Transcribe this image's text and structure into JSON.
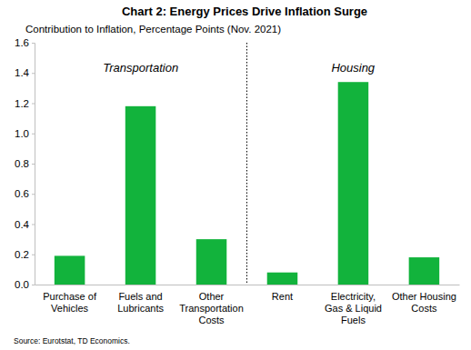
{
  "chart_data": {
    "type": "bar",
    "title": "Chart 2: Energy Prices Drive Inflation Surge",
    "subtitle": "Contribution to Inflation, Percentage Points (Nov. 2021)",
    "annotations": [
      "Transportation",
      "Housing"
    ],
    "source": "Source: Eurotstat, TD Economics.",
    "categories": [
      "Purchase of\nVehicles",
      "Fuels and\nLubricants",
      "Other\nTransportation\nCosts",
      "Rent",
      "Electricity,\nGas & Liquid\nFuels",
      "Other Housing\nCosts"
    ],
    "values": [
      0.19,
      1.18,
      0.3,
      0.08,
      1.34,
      0.18
    ],
    "color": "#12b33c",
    "ylim": [
      0,
      1.6
    ],
    "yticks": [
      {
        "value": 0,
        "label": "0.0"
      },
      {
        "value": 0.2,
        "label": "0.2"
      },
      {
        "value": 0.4,
        "label": "0.4"
      },
      {
        "value": 0.6,
        "label": "0.6"
      },
      {
        "value": 0.8,
        "label": "0.8"
      },
      {
        "value": 1.0,
        "label": "1.0"
      },
      {
        "value": 1.2,
        "label": "1.2"
      },
      {
        "value": 1.4,
        "label": "1.4"
      },
      {
        "value": 1.6,
        "label": "1.6"
      }
    ],
    "grid": false
  }
}
